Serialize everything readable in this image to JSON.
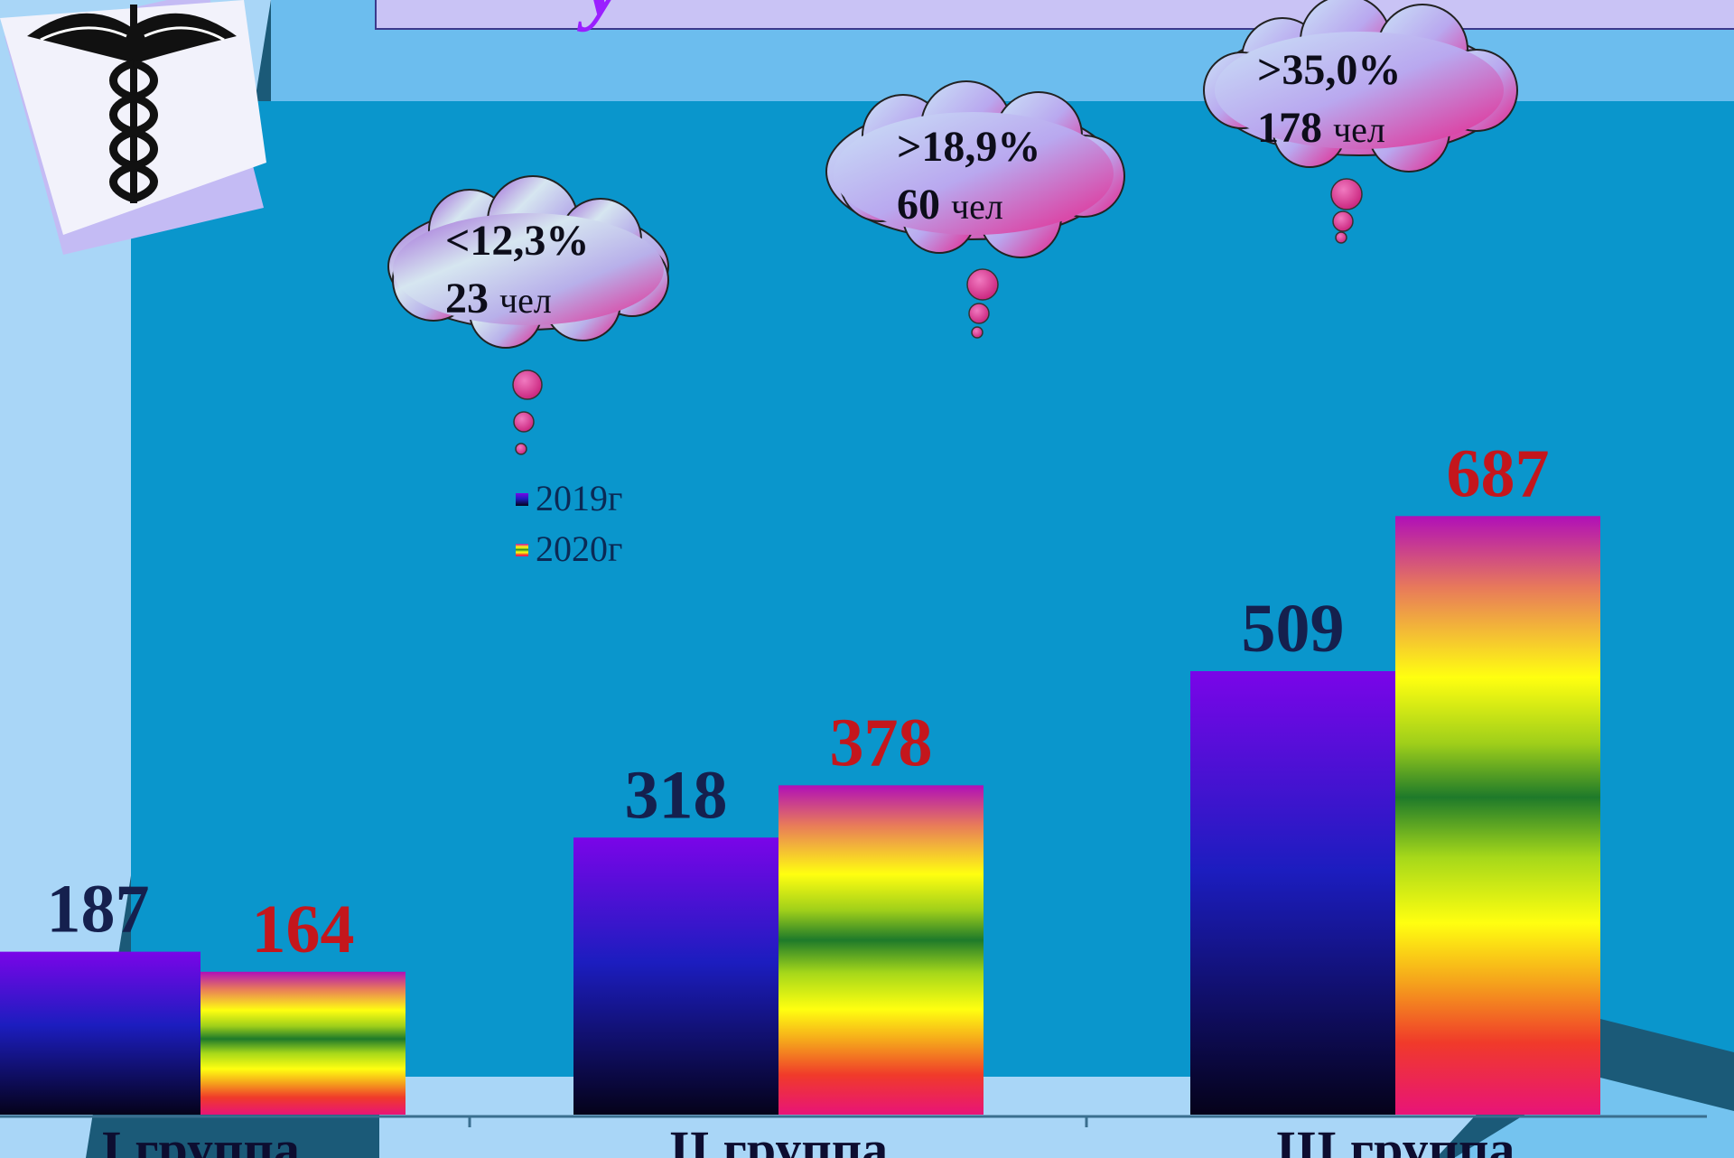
{
  "slide": {
    "title_fragment": "у",
    "logo": "caduceus-icon"
  },
  "colors": {
    "background_light": "#a9d6f7",
    "panel_dark": "#1b5a78",
    "chart_bg": "#0a96cc",
    "title_box": "#c9c3f5",
    "title_text": "#9a1fff",
    "value_2019": "#15204e",
    "value_2020": "#c4161c",
    "bar_2019_top": "#7a05e8",
    "bar_2019_mid": "#1c1dbf",
    "bar_2019_bottom": "#05021a",
    "bubble_pink": "#e8208a",
    "bubble_lavender": "#b9a8ef"
  },
  "chart_data": {
    "type": "bar",
    "categories": [
      "I группа",
      "II группа",
      "III группа"
    ],
    "series": [
      {
        "name": "2019г",
        "values": [
          187,
          318,
          509
        ]
      },
      {
        "name": "2020г",
        "values": [
          164,
          378,
          687
        ]
      }
    ],
    "ylim": [
      0,
      800
    ],
    "grid": false,
    "legend_position": "center-left",
    "value_labels": {
      "2019": [
        "187",
        "318",
        "509"
      ],
      "2020": [
        "164",
        "378",
        "687"
      ]
    },
    "annotations": [
      {
        "category": "I группа",
        "line1": "<12,3%",
        "line2_num": "23",
        "line2_unit": "чел"
      },
      {
        "category": "II группа",
        "line1": ">18,9%",
        "line2_num": "60",
        "line2_unit": "чел"
      },
      {
        "category": "III группа",
        "line1": ">35,0%",
        "line2_num": "178",
        "line2_unit": "чел"
      }
    ]
  }
}
